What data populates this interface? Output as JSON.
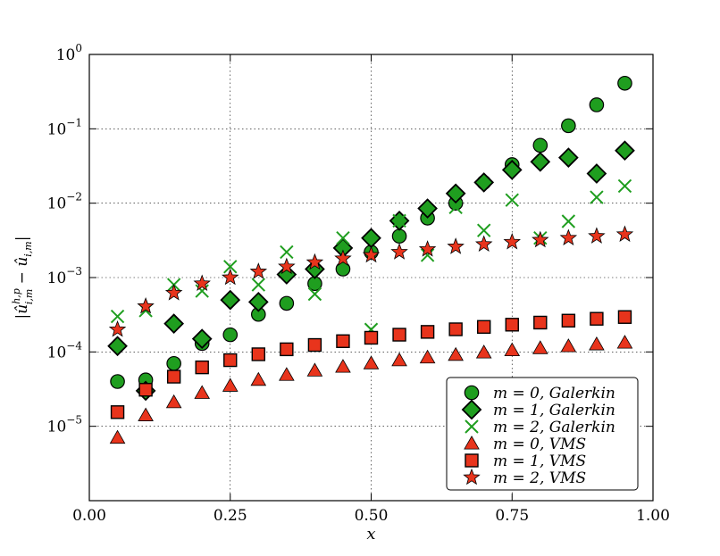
{
  "chart_data": {
    "type": "scatter",
    "xlabel": "x",
    "ylabel": "|û^{h,p}_{i,m} − û_{i,m}|",
    "ylabel_main": "|û",
    "ylabel_sup": "h,p",
    "ylabel_sub": "i,m",
    "ylabel_rest": " − û",
    "ylabel_sub2": "i,m",
    "ylabel_end": "|",
    "xlim": [
      0,
      1
    ],
    "ylim": [
      1e-06,
      1
    ],
    "yscale": "log",
    "grid": true,
    "legend_position": "lower-right",
    "x_ticks": [
      {
        "value": 0.0,
        "label": "0.00"
      },
      {
        "value": 0.25,
        "label": "0.25"
      },
      {
        "value": 0.5,
        "label": "0.50"
      },
      {
        "value": 0.75,
        "label": "0.75"
      },
      {
        "value": 1.0,
        "label": "1.00"
      }
    ],
    "y_ticks": [
      {
        "value": 1e-05,
        "mantissa": "10",
        "exponent": "−5"
      },
      {
        "value": 0.0001,
        "mantissa": "10",
        "exponent": "−4"
      },
      {
        "value": 0.001,
        "mantissa": "10",
        "exponent": "−3"
      },
      {
        "value": 0.01,
        "mantissa": "10",
        "exponent": "−2"
      },
      {
        "value": 0.1,
        "mantissa": "10",
        "exponent": "−1"
      },
      {
        "value": 1,
        "mantissa": "10",
        "exponent": "0"
      }
    ],
    "series": [
      {
        "name": "m = 0, Galerkin",
        "marker": "circle",
        "color": "#1f9e1f",
        "x": [
          0.05,
          0.1,
          0.15,
          0.2,
          0.25,
          0.3,
          0.35,
          0.4,
          0.45,
          0.5,
          0.55,
          0.6,
          0.65,
          0.7,
          0.75,
          0.8,
          0.85,
          0.9,
          0.95
        ],
        "y": [
          4e-05,
          4.2e-05,
          7e-05,
          0.00013,
          0.00017,
          0.00032,
          0.00045,
          0.00083,
          0.0013,
          0.0022,
          0.0036,
          0.0063,
          0.01,
          0.019,
          0.033,
          0.06,
          0.11,
          0.21,
          0.41
        ]
      },
      {
        "name": "m = 1, Galerkin",
        "marker": "diamond",
        "color": "#1f9e1f",
        "x": [
          0.05,
          0.1,
          0.15,
          0.2,
          0.25,
          0.3,
          0.35,
          0.4,
          0.45,
          0.5,
          0.55,
          0.6,
          0.65,
          0.7,
          0.75,
          0.8,
          0.85,
          0.9,
          0.95
        ],
        "y": [
          0.00012,
          3e-05,
          0.00024,
          0.00015,
          0.0005,
          0.00047,
          0.0011,
          0.0013,
          0.0025,
          0.0034,
          0.0058,
          0.0085,
          0.0135,
          0.019,
          0.028,
          0.036,
          0.041,
          0.025,
          0.051
        ]
      },
      {
        "name": "m = 2, Galerkin",
        "marker": "x",
        "color": "#1f9e1f",
        "x": [
          0.05,
          0.1,
          0.15,
          0.2,
          0.25,
          0.3,
          0.35,
          0.4,
          0.45,
          0.5,
          0.55,
          0.6,
          0.65,
          0.7,
          0.75,
          0.8,
          0.85,
          0.9,
          0.95
        ],
        "y": [
          0.0003,
          0.00036,
          0.0008,
          0.00066,
          0.0014,
          0.0008,
          0.0022,
          0.0006,
          0.0034,
          0.0002,
          0.0058,
          0.002,
          0.0088,
          0.0043,
          0.011,
          0.0034,
          0.0057,
          0.012,
          0.017
        ]
      },
      {
        "name": "m = 0, VMS",
        "marker": "triangle",
        "color": "#e8341c",
        "x": [
          0.05,
          0.1,
          0.15,
          0.2,
          0.25,
          0.3,
          0.35,
          0.4,
          0.45,
          0.5,
          0.55,
          0.6,
          0.65,
          0.7,
          0.75,
          0.8,
          0.85,
          0.9,
          0.95
        ],
        "y": [
          7e-06,
          1.4e-05,
          2.1e-05,
          2.8e-05,
          3.5e-05,
          4.2e-05,
          4.9e-05,
          5.6e-05,
          6.3e-05,
          7e-05,
          7.7e-05,
          8.4e-05,
          9.1e-05,
          9.8e-05,
          0.000105,
          0.000112,
          0.000119,
          0.000126,
          0.000133
        ]
      },
      {
        "name": "m = 1, VMS",
        "marker": "square",
        "color": "#e8341c",
        "x": [
          0.05,
          0.1,
          0.15,
          0.2,
          0.25,
          0.3,
          0.35,
          0.4,
          0.45,
          0.5,
          0.55,
          0.6,
          0.65,
          0.7,
          0.75,
          0.8,
          0.85,
          0.9,
          0.95
        ],
        "y": [
          1.55e-05,
          3.1e-05,
          4.65e-05,
          6.2e-05,
          7.75e-05,
          9.3e-05,
          0.0001085,
          0.000124,
          0.0001395,
          0.000155,
          0.0001705,
          0.000186,
          0.0002015,
          0.000217,
          0.0002325,
          0.000248,
          0.0002635,
          0.000279,
          0.0002945
        ]
      },
      {
        "name": "m = 2, VMS",
        "marker": "star",
        "color": "#e8341c",
        "x": [
          0.05,
          0.1,
          0.15,
          0.2,
          0.25,
          0.3,
          0.35,
          0.4,
          0.45,
          0.5,
          0.55,
          0.6,
          0.65,
          0.7,
          0.75,
          0.8,
          0.85,
          0.9,
          0.95
        ],
        "y": [
          0.0002,
          0.00041,
          0.00062,
          0.00083,
          0.001,
          0.0012,
          0.0014,
          0.0016,
          0.0018,
          0.002,
          0.0022,
          0.0024,
          0.0026,
          0.0028,
          0.003,
          0.0032,
          0.0034,
          0.0036,
          0.0038
        ]
      }
    ],
    "legend_entries": [
      {
        "math": "m = 0, ",
        "italic": "Galerkin"
      },
      {
        "math": "m = 1, ",
        "italic": "Galerkin"
      },
      {
        "math": "m = 2, ",
        "italic": "Galerkin"
      },
      {
        "math": "m = 0, ",
        "italic": "VMS"
      },
      {
        "math": "m = 1, ",
        "italic": "VMS"
      },
      {
        "math": "m = 2, ",
        "italic": "VMS"
      }
    ]
  }
}
